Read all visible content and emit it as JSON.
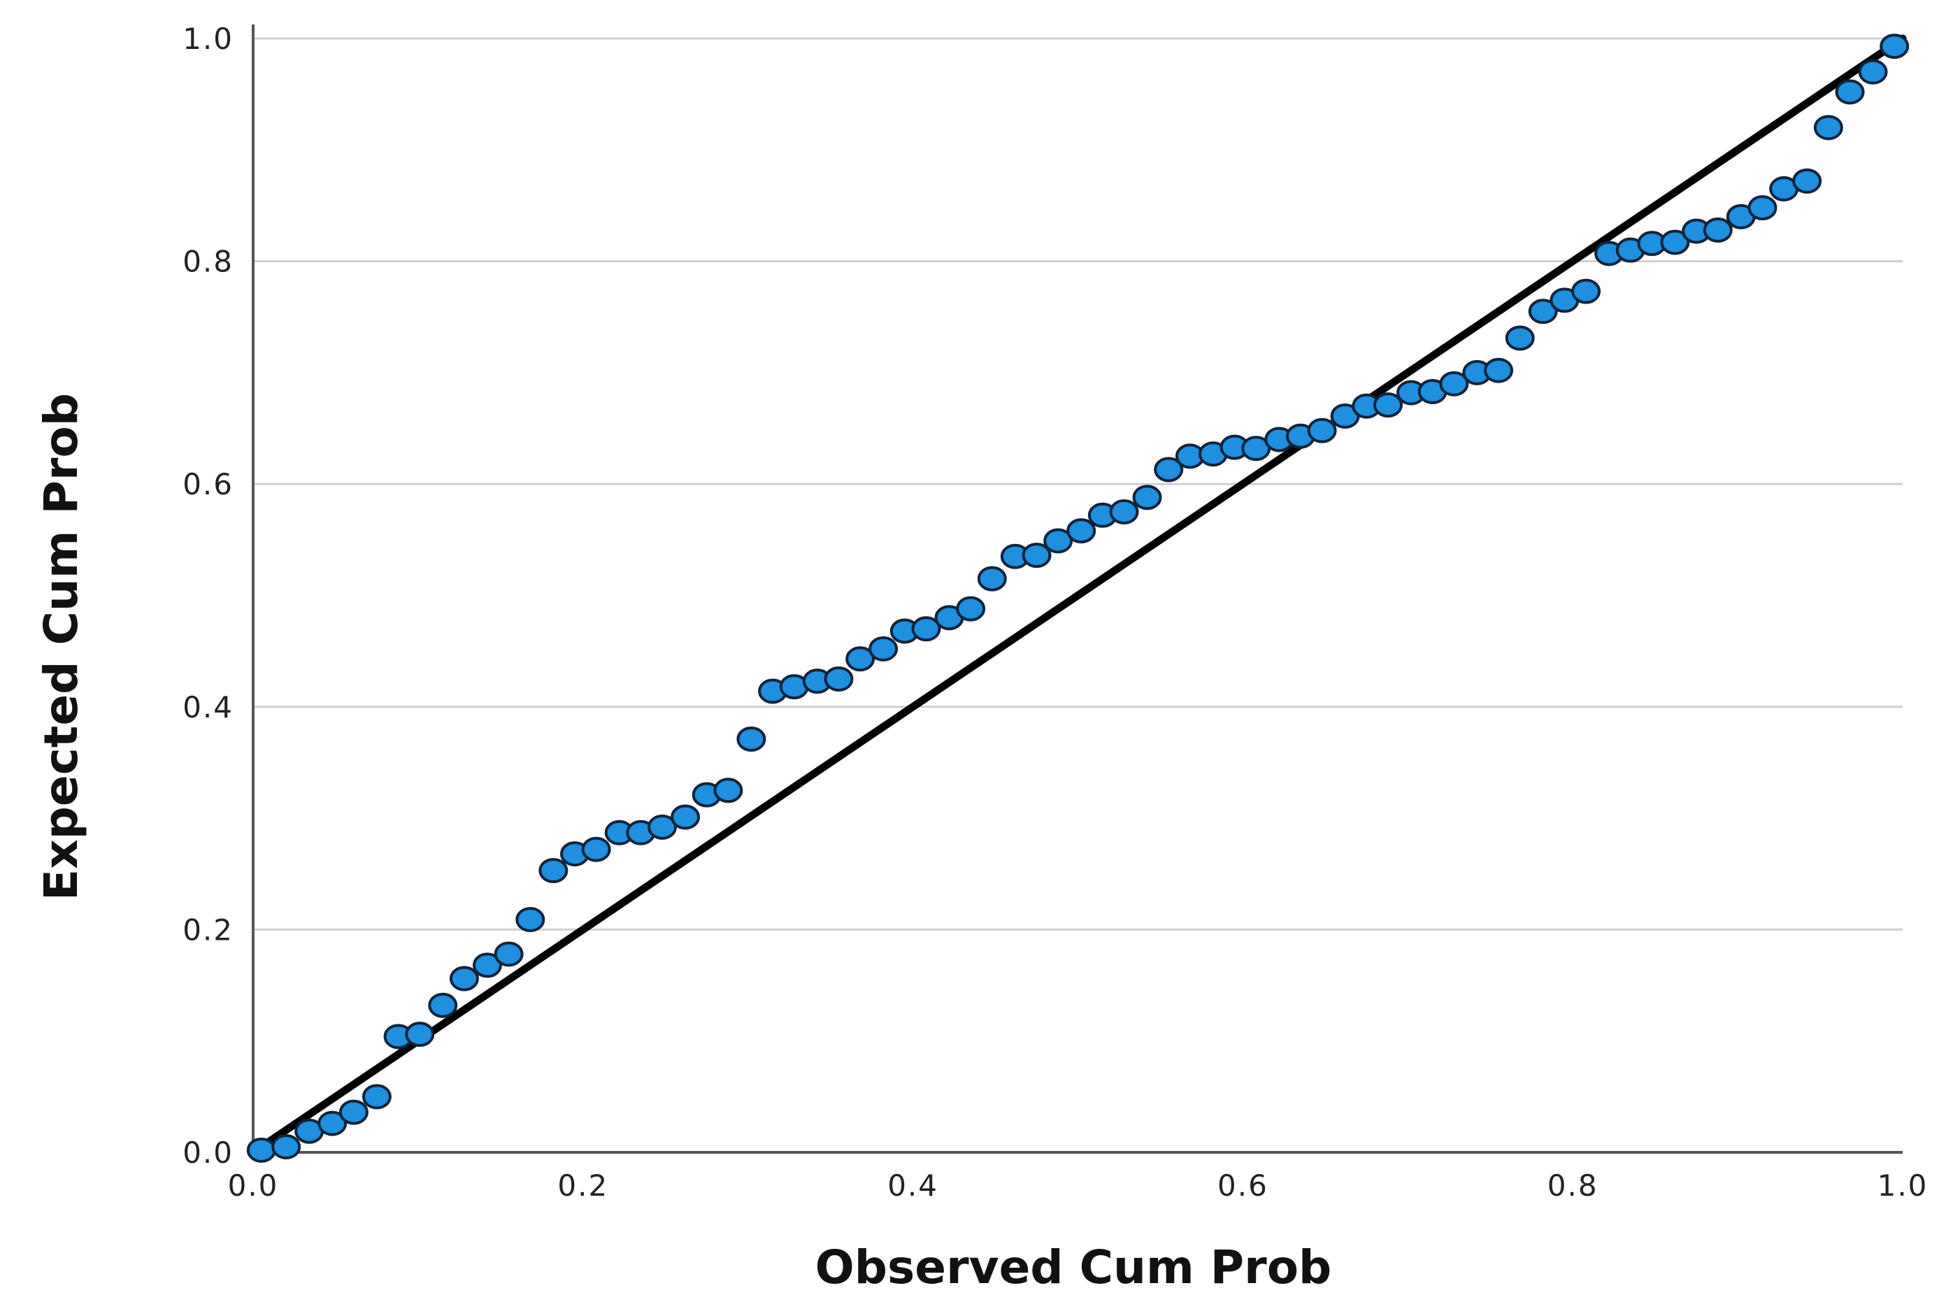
{
  "chart_data": {
    "type": "scatter",
    "title": "",
    "xlabel": "Observed Cum Prob",
    "ylabel": "Expected Cum Prob",
    "xlim": [
      0.0,
      1.0
    ],
    "ylim": [
      0.0,
      1.0
    ],
    "x_ticks": [
      "0.0",
      "0.2",
      "0.4",
      "0.6",
      "0.8",
      "1.0"
    ],
    "y_ticks": [
      "0.0",
      "0.2",
      "0.4",
      "0.6",
      "0.8",
      "1.0"
    ],
    "grid": "horizontal",
    "legend": "none",
    "reference_line": {
      "from": [
        0.0,
        0.0
      ],
      "to": [
        1.0,
        1.0
      ],
      "color": "#000000"
    },
    "marker_color": "#1f8fe0",
    "marker_edge_color": "#10243a",
    "points": [
      [
        0.005,
        0.002
      ],
      [
        0.02,
        0.005
      ],
      [
        0.034,
        0.019
      ],
      [
        0.048,
        0.026
      ],
      [
        0.061,
        0.036
      ],
      [
        0.075,
        0.05
      ],
      [
        0.088,
        0.104
      ],
      [
        0.101,
        0.106
      ],
      [
        0.115,
        0.132
      ],
      [
        0.128,
        0.156
      ],
      [
        0.142,
        0.168
      ],
      [
        0.155,
        0.178
      ],
      [
        0.168,
        0.209
      ],
      [
        0.182,
        0.253
      ],
      [
        0.195,
        0.268
      ],
      [
        0.208,
        0.272
      ],
      [
        0.222,
        0.287
      ],
      [
        0.235,
        0.287
      ],
      [
        0.248,
        0.292
      ],
      [
        0.262,
        0.301
      ],
      [
        0.275,
        0.321
      ],
      [
        0.288,
        0.325
      ],
      [
        0.302,
        0.371
      ],
      [
        0.315,
        0.414
      ],
      [
        0.328,
        0.418
      ],
      [
        0.342,
        0.423
      ],
      [
        0.355,
        0.425
      ],
      [
        0.368,
        0.443
      ],
      [
        0.382,
        0.452
      ],
      [
        0.395,
        0.468
      ],
      [
        0.408,
        0.47
      ],
      [
        0.422,
        0.48
      ],
      [
        0.435,
        0.488
      ],
      [
        0.448,
        0.515
      ],
      [
        0.462,
        0.535
      ],
      [
        0.475,
        0.536
      ],
      [
        0.488,
        0.549
      ],
      [
        0.502,
        0.558
      ],
      [
        0.515,
        0.572
      ],
      [
        0.528,
        0.575
      ],
      [
        0.542,
        0.588
      ],
      [
        0.555,
        0.613
      ],
      [
        0.568,
        0.625
      ],
      [
        0.582,
        0.627
      ],
      [
        0.595,
        0.633
      ],
      [
        0.608,
        0.632
      ],
      [
        0.622,
        0.64
      ],
      [
        0.635,
        0.643
      ],
      [
        0.648,
        0.648
      ],
      [
        0.662,
        0.661
      ],
      [
        0.675,
        0.67
      ],
      [
        0.688,
        0.671
      ],
      [
        0.702,
        0.682
      ],
      [
        0.715,
        0.683
      ],
      [
        0.728,
        0.69
      ],
      [
        0.742,
        0.7
      ],
      [
        0.755,
        0.702
      ],
      [
        0.768,
        0.731
      ],
      [
        0.782,
        0.755
      ],
      [
        0.795,
        0.765
      ],
      [
        0.808,
        0.773
      ],
      [
        0.822,
        0.807
      ],
      [
        0.835,
        0.81
      ],
      [
        0.848,
        0.816
      ],
      [
        0.862,
        0.817
      ],
      [
        0.875,
        0.827
      ],
      [
        0.888,
        0.828
      ],
      [
        0.902,
        0.84
      ],
      [
        0.915,
        0.848
      ],
      [
        0.928,
        0.865
      ],
      [
        0.942,
        0.872
      ],
      [
        0.955,
        0.92
      ],
      [
        0.968,
        0.952
      ],
      [
        0.982,
        0.97
      ],
      [
        0.995,
        0.993
      ]
    ]
  }
}
